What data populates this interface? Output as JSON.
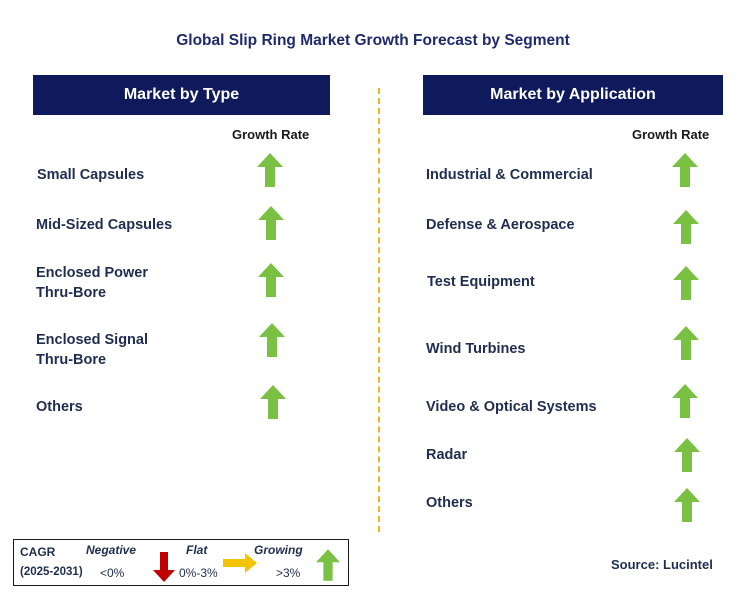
{
  "title": "Global Slip Ring Market Growth Forecast by Segment",
  "type_panel": {
    "header": "Market by Type",
    "growth_label": "Growth Rate",
    "rows": [
      {
        "label_line1": "Small Capsules",
        "label_line2": "",
        "growth": "growing"
      },
      {
        "label_line1": "Mid-Sized Capsules",
        "label_line2": "",
        "growth": "growing"
      },
      {
        "label_line1": "Enclosed Power",
        "label_line2": "Thru-Bore",
        "growth": "growing"
      },
      {
        "label_line1": "Enclosed Signal",
        "label_line2": "Thru-Bore",
        "growth": "growing"
      },
      {
        "label_line1": "Others",
        "label_line2": "",
        "growth": "growing"
      }
    ]
  },
  "application_panel": {
    "header": "Market by Application",
    "growth_label": "Growth Rate",
    "rows": [
      {
        "label": "Industrial & Commercial",
        "growth": "growing"
      },
      {
        "label": "Defense & Aerospace",
        "growth": "growing"
      },
      {
        "label": "Test Equipment",
        "growth": "growing"
      },
      {
        "label": "Wind Turbines",
        "growth": "growing"
      },
      {
        "label": "Video & Optical Systems",
        "growth": "growing"
      },
      {
        "label": "Radar",
        "growth": "growing"
      },
      {
        "label": "Others",
        "growth": "growing"
      }
    ]
  },
  "legend": {
    "cagr_label": "CAGR",
    "period": "(2025-2031)",
    "negative_label": "Negative",
    "negative_range": "<0%",
    "flat_label": "Flat",
    "flat_range": "0%-3%",
    "growing_label": "Growing",
    "growing_range": ">3%"
  },
  "source": "Source: Lucintel",
  "colors": {
    "header_bg": "#0e1a5c",
    "growing_arrow": "#7ac143",
    "negative_arrow": "#c00000",
    "flat_arrow": "#f5c400",
    "divider": "#f2b51c"
  }
}
